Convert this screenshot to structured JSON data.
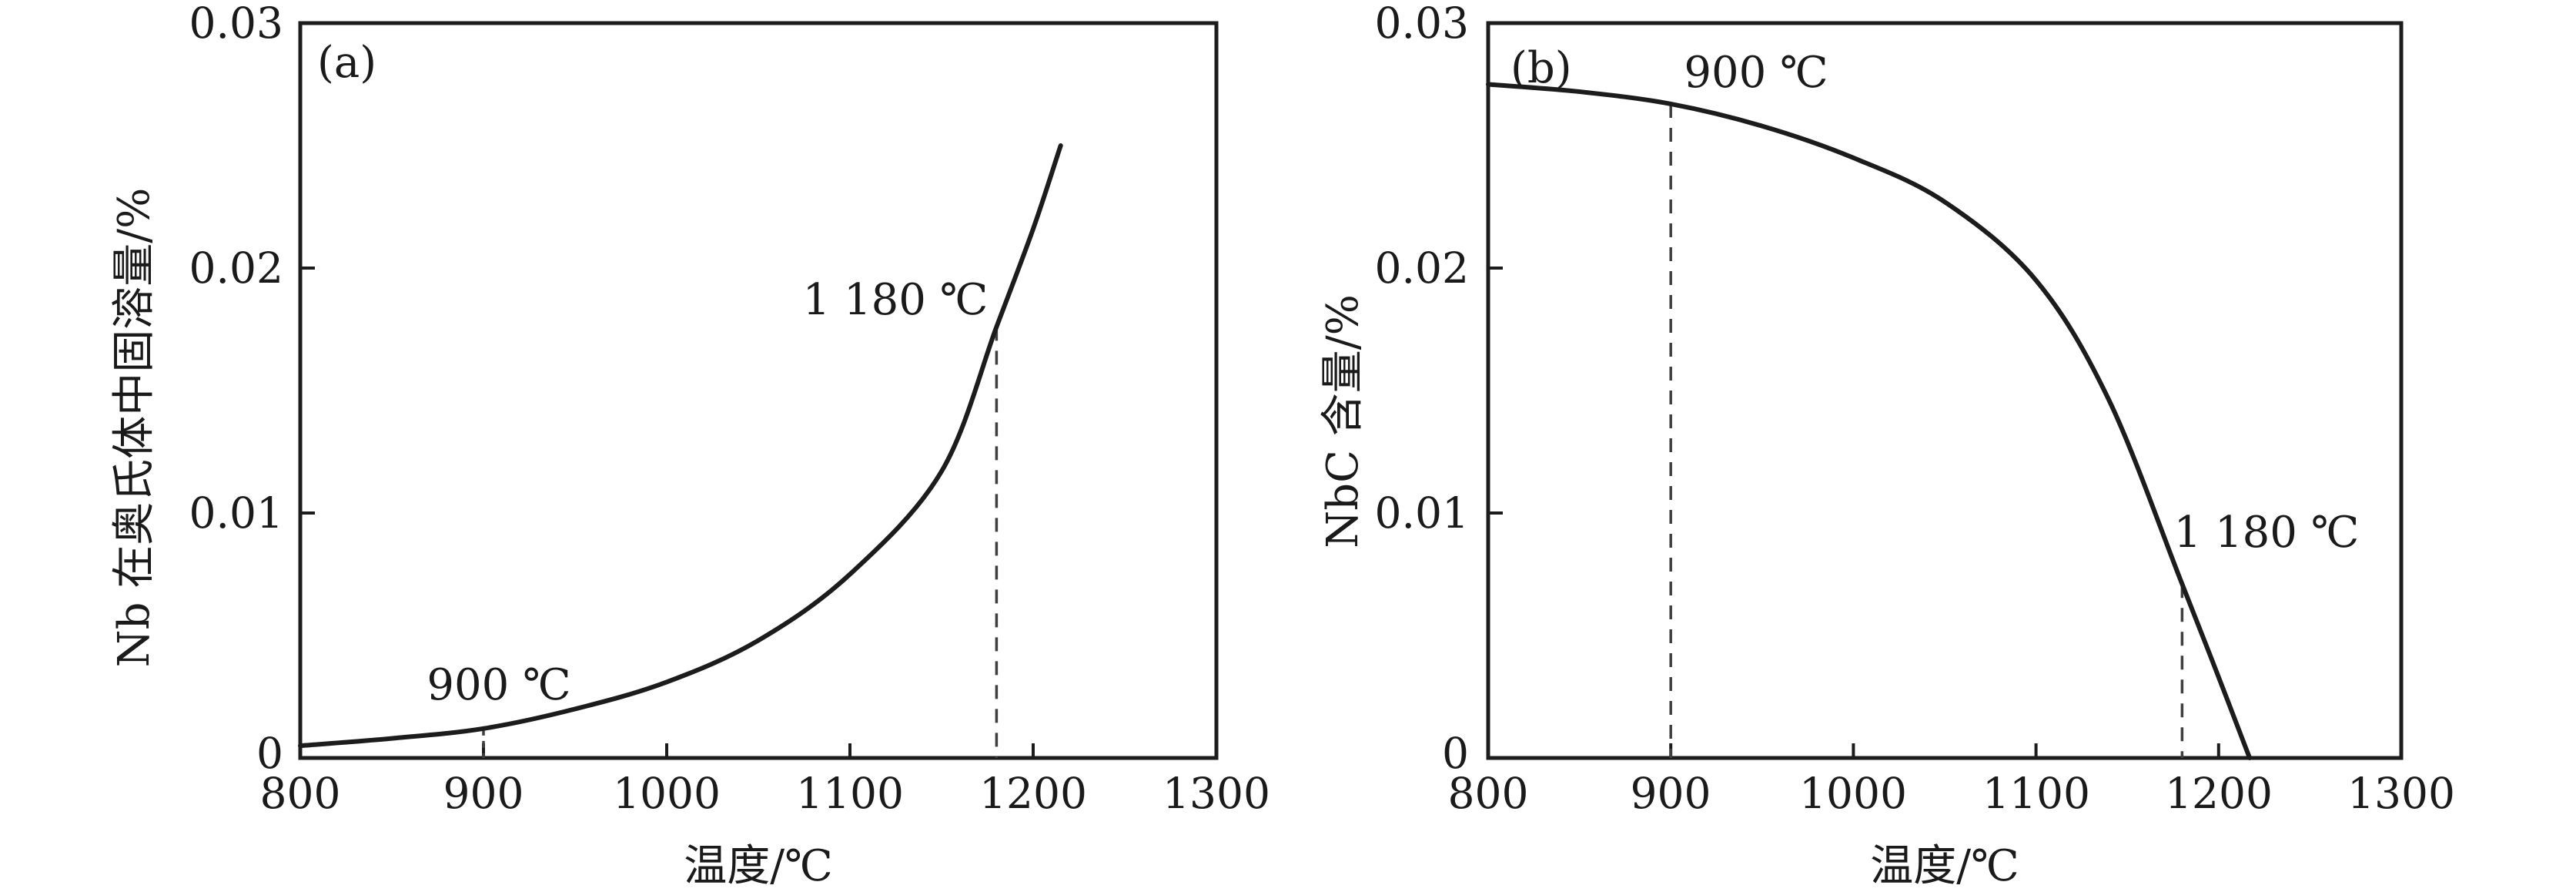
{
  "page": {
    "background": "#ffffff",
    "text_color": "#1a1a1a",
    "curve_color": "#1c1c1c",
    "axis_color": "#1c1c1c",
    "dash_color": "#3f3f3f"
  },
  "figure": {
    "panels": [
      {
        "corner_label": "(a)",
        "x_axis": {
          "label": "温度/℃",
          "min": 800,
          "max": 1300,
          "tick_values": [
            800,
            900,
            1000,
            1100,
            1200,
            1300
          ],
          "tick_labels": [
            "800",
            "900",
            "1000",
            "1100",
            "1200",
            "1300"
          ]
        },
        "y_axis": {
          "label": "Nb 在奥氏体中固溶量/%",
          "min": 0,
          "max": 0.03,
          "tick_values": [
            0,
            0.01,
            0.02,
            0.03
          ],
          "tick_labels": [
            "0",
            "0.01",
            "0.02",
            "0.03"
          ]
        },
        "annotations": [
          {
            "text": "900 ℃",
            "x": 900
          },
          {
            "text": "1 180 ℃",
            "x": 1180
          }
        ]
      },
      {
        "corner_label": "(b)",
        "x_axis": {
          "label": "温度/℃",
          "min": 800,
          "max": 1300,
          "tick_values": [
            800,
            900,
            1000,
            1100,
            1200,
            1300
          ],
          "tick_labels": [
            "800",
            "900",
            "1000",
            "1100",
            "1200",
            "1300"
          ]
        },
        "y_axis": {
          "label": "NbC 含量/%",
          "min": 0,
          "max": 0.03,
          "tick_values": [
            0,
            0.01,
            0.02,
            0.03
          ],
          "tick_labels": [
            "0",
            "0.01",
            "0.02",
            "0.03"
          ]
        },
        "annotations": [
          {
            "text": "900 ℃",
            "x": 900
          },
          {
            "text": "1 180 ℃",
            "x": 1180
          }
        ]
      }
    ]
  },
  "chart_data": [
    {
      "type": "line",
      "title": "(a)",
      "xlabel": "温度/℃",
      "ylabel": "Nb 在奥氏体中固溶量/%",
      "xlim": [
        800,
        1300
      ],
      "ylim": [
        0,
        0.03
      ],
      "grid": false,
      "legend": false,
      "x": [
        800,
        850,
        900,
        950,
        1000,
        1050,
        1100,
        1150,
        1180,
        1200,
        1215
      ],
      "y": [
        0.0005,
        0.0008,
        0.0012,
        0.002,
        0.0031,
        0.0048,
        0.0075,
        0.0117,
        0.0176,
        0.0216,
        0.025
      ],
      "guides": [
        {
          "x": 900,
          "label": "900 ℃"
        },
        {
          "x": 1180,
          "label": "1 180 ℃"
        }
      ]
    },
    {
      "type": "line",
      "title": "(b)",
      "xlabel": "温度/℃",
      "ylabel": "NbC 含量/%",
      "xlim": [
        800,
        1300
      ],
      "ylim": [
        0,
        0.03
      ],
      "grid": false,
      "legend": false,
      "x": [
        800,
        850,
        900,
        950,
        1000,
        1050,
        1100,
        1140,
        1180,
        1200,
        1217
      ],
      "y": [
        0.0275,
        0.0272,
        0.0267,
        0.0258,
        0.0245,
        0.0227,
        0.0195,
        0.0146,
        0.0071,
        0.0033,
        0
      ],
      "guides": [
        {
          "x": 900,
          "label": "900 ℃"
        },
        {
          "x": 1180,
          "label": "1 180 ℃"
        }
      ]
    }
  ]
}
